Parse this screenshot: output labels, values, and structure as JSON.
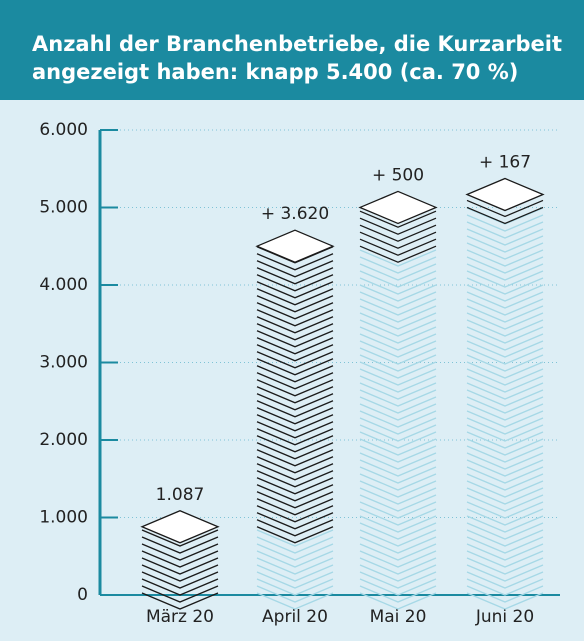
{
  "chart_data": {
    "type": "waterfall",
    "title": "Anzahl der Branchenbetriebe, die Kurzarbeit angezeigt haben: knapp 5.400 (ca. 70 %)",
    "categories": [
      "März 20",
      "April 20",
      "Mai 20",
      "Juni 20"
    ],
    "values": [
      1087,
      3620,
      500,
      167
    ],
    "value_labels": [
      "1.087",
      "+ 3.620",
      "+ 500",
      "+ 167"
    ],
    "color": "#1a1a1a",
    "base_color": "#a6d8e6",
    "ylim": [
      0,
      6000
    ],
    "yticks": [
      0,
      {
        "value": 1000,
        "label": "1.000"
      },
      {
        "value": 2000,
        "label": "2.000"
      },
      {
        "value": 3000,
        "label": "3.000"
      },
      {
        "value": 4000,
        "label": "4.000"
      },
      {
        "value": 5000,
        "label": "5.000"
      },
      {
        "value": 6000,
        "label": "6.000"
      }
    ],
    "grid": true
  }
}
